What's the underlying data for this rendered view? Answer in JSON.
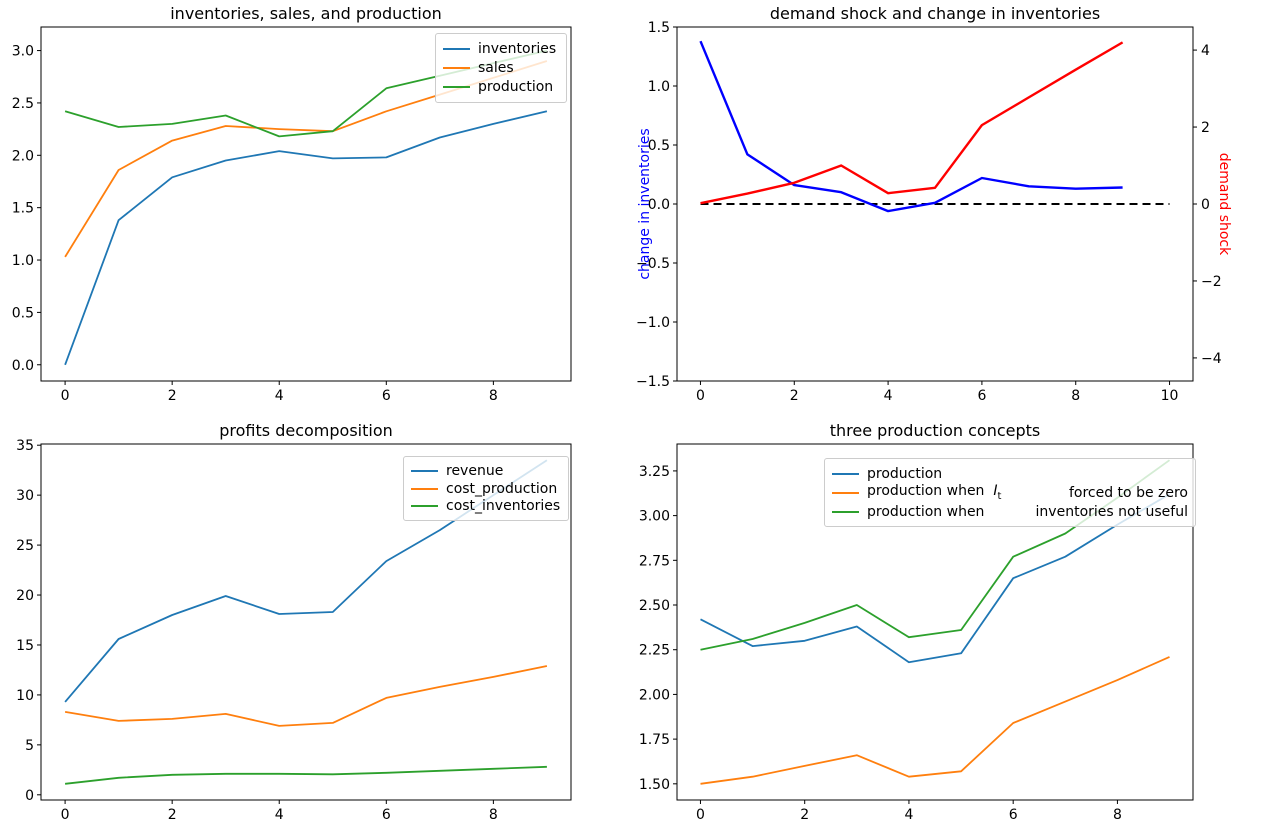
{
  "figure": {
    "background": "#ffffff"
  },
  "chart_data": [
    {
      "type": "line",
      "title": "inventories, sales, and production",
      "x": [
        0,
        1,
        2,
        3,
        4,
        5,
        6,
        7,
        8,
        9
      ],
      "xlim": [
        -0.45,
        9.45
      ],
      "ylim": [
        -0.155,
        3.225
      ],
      "xticks": [
        0,
        2,
        4,
        6,
        8
      ],
      "xtick_labels": [
        "0",
        "2",
        "4",
        "6",
        "8"
      ],
      "yticks": [
        0.0,
        0.5,
        1.0,
        1.5,
        2.0,
        2.5,
        3.0
      ],
      "ytick_labels": [
        "0.0",
        "0.5",
        "1.0",
        "1.5",
        "2.0",
        "2.5",
        "3.0"
      ],
      "grid": false,
      "series": [
        {
          "name": "inventories",
          "color": "#1f77b4",
          "width": 1.8,
          "values": [
            0.0,
            1.38,
            1.79,
            1.95,
            2.04,
            1.97,
            1.98,
            2.17,
            2.3,
            2.42
          ]
        },
        {
          "name": "sales",
          "color": "#ff7f0e",
          "width": 1.8,
          "values": [
            1.03,
            1.86,
            2.14,
            2.28,
            2.25,
            2.23,
            2.42,
            2.58,
            2.74,
            2.9
          ]
        },
        {
          "name": "production",
          "color": "#2ca02c",
          "width": 1.8,
          "values": [
            2.42,
            2.27,
            2.3,
            2.38,
            2.18,
            2.23,
            2.64,
            2.76,
            2.88,
            3.0
          ]
        }
      ],
      "legend": {
        "position": "upper right",
        "entries": [
          {
            "color": "#1f77b4",
            "label": "inventories"
          },
          {
            "color": "#ff7f0e",
            "label": "sales"
          },
          {
            "color": "#2ca02c",
            "label": "production"
          }
        ]
      }
    },
    {
      "type": "line",
      "title": "demand shock and change in inventories",
      "x": [
        0,
        1,
        2,
        3,
        4,
        5,
        6,
        7,
        8,
        9
      ],
      "xlim": [
        -0.5,
        10.5
      ],
      "ylim": [
        -1.5,
        1.5
      ],
      "ylim_right": [
        -4.6,
        4.6
      ],
      "xticks": [
        0,
        2,
        4,
        6,
        8,
        10
      ],
      "xtick_labels": [
        "0",
        "2",
        "4",
        "6",
        "8",
        "10"
      ],
      "yticks": [
        -1.5,
        -1.0,
        -0.5,
        0.0,
        0.5,
        1.0,
        1.5
      ],
      "ytick_labels": [
        "−1.5",
        "−1.0",
        "−0.5",
        "0.0",
        "0.5",
        "1.0",
        "1.5"
      ],
      "yticks_right": [
        -4,
        -2,
        0,
        2,
        4
      ],
      "ytick_labels_right": [
        "−4",
        "−2",
        "0",
        "2",
        "4"
      ],
      "ylabel_left": {
        "text": "change in inventories",
        "color": "#0000ff"
      },
      "ylabel_right": {
        "text": "demand shock",
        "color": "#ff0000"
      },
      "grid": false,
      "series": [
        {
          "name": "zero line",
          "color": "#000000",
          "width": 2.0,
          "dash": true,
          "axis": "left",
          "x": [
            0,
            1,
            2,
            3,
            4,
            5,
            6,
            7,
            8,
            9,
            10
          ],
          "values": [
            0,
            0,
            0,
            0,
            0,
            0,
            0,
            0,
            0,
            0,
            0
          ]
        },
        {
          "name": "change in inventories",
          "color": "#0000ff",
          "width": 2.4,
          "axis": "left",
          "values": [
            1.38,
            0.42,
            0.16,
            0.1,
            -0.06,
            0.01,
            0.22,
            0.15,
            0.13,
            0.14
          ]
        },
        {
          "name": "demand shock",
          "color": "#ff0000",
          "width": 2.4,
          "axis": "right",
          "values": [
            0.02,
            0.27,
            0.55,
            1.0,
            0.28,
            0.42,
            2.05,
            2.77,
            3.49,
            4.2
          ]
        }
      ],
      "legend": null
    },
    {
      "type": "line",
      "title": "profits decomposition",
      "x": [
        0,
        1,
        2,
        3,
        4,
        5,
        6,
        7,
        8,
        9
      ],
      "xlim": [
        -0.45,
        9.45
      ],
      "ylim": [
        -0.52,
        35.12
      ],
      "xticks": [
        0,
        2,
        4,
        6,
        8
      ],
      "xtick_labels": [
        "0",
        "2",
        "4",
        "6",
        "8"
      ],
      "yticks": [
        0,
        5,
        10,
        15,
        20,
        25,
        30,
        35
      ],
      "ytick_labels": [
        "0",
        "5",
        "10",
        "15",
        "20",
        "25",
        "30",
        "35"
      ],
      "grid": false,
      "series": [
        {
          "name": "revenue",
          "color": "#1f77b4",
          "width": 1.8,
          "values": [
            9.3,
            15.6,
            18.0,
            19.9,
            18.1,
            18.3,
            23.4,
            26.5,
            30.0,
            33.5
          ]
        },
        {
          "name": "cost_production",
          "color": "#ff7f0e",
          "width": 1.8,
          "values": [
            8.3,
            7.4,
            7.6,
            8.1,
            6.9,
            7.2,
            9.7,
            10.8,
            11.8,
            12.9
          ]
        },
        {
          "name": "cost_inventories",
          "color": "#2ca02c",
          "width": 1.8,
          "values": [
            1.1,
            1.7,
            2.0,
            2.1,
            2.1,
            2.05,
            2.2,
            2.4,
            2.6,
            2.8
          ]
        }
      ],
      "legend": {
        "position": "upper right",
        "entries": [
          {
            "color": "#1f77b4",
            "label": "revenue"
          },
          {
            "color": "#ff7f0e",
            "label": "cost_production"
          },
          {
            "color": "#2ca02c",
            "label": "cost_inventories"
          }
        ]
      }
    },
    {
      "type": "line",
      "title": "three production concepts",
      "x": [
        0,
        1,
        2,
        3,
        4,
        5,
        6,
        7,
        8,
        9
      ],
      "xlim": [
        -0.45,
        9.45
      ],
      "ylim": [
        1.4095,
        3.4005
      ],
      "xticks": [
        0,
        2,
        4,
        6,
        8
      ],
      "xtick_labels": [
        "0",
        "2",
        "4",
        "6",
        "8"
      ],
      "yticks": [
        1.5,
        1.75,
        2.0,
        2.25,
        2.5,
        2.75,
        3.0,
        3.25
      ],
      "ytick_labels": [
        "1.50",
        "1.75",
        "2.00",
        "2.25",
        "2.50",
        "2.75",
        "3.00",
        "3.25"
      ],
      "grid": false,
      "series": [
        {
          "name": "production",
          "color": "#1f77b4",
          "width": 1.8,
          "values": [
            2.42,
            2.27,
            2.3,
            2.38,
            2.18,
            2.23,
            2.65,
            2.77,
            2.95,
            3.12
          ]
        },
        {
          "name": "production when It forced to be zero",
          "color": "#ff7f0e",
          "width": 1.8,
          "values": [
            1.5,
            1.54,
            1.6,
            1.66,
            1.54,
            1.57,
            1.84,
            1.96,
            2.08,
            2.21
          ]
        },
        {
          "name": "production when inventories not useful",
          "color": "#2ca02c",
          "width": 1.8,
          "values": [
            2.25,
            2.31,
            2.4,
            2.5,
            2.32,
            2.36,
            2.77,
            2.9,
            3.1,
            3.31
          ]
        }
      ],
      "legend": {
        "position": "upper center",
        "entries": [
          {
            "color": "#1f77b4",
            "label": "production"
          },
          {
            "color": "#ff7f0e",
            "label": "production when",
            "math_var": "I",
            "math_sub": "t",
            "right_label": "forced to be zero"
          },
          {
            "color": "#2ca02c",
            "label": "production when",
            "right_label": "inventories not useful"
          }
        ]
      }
    }
  ]
}
